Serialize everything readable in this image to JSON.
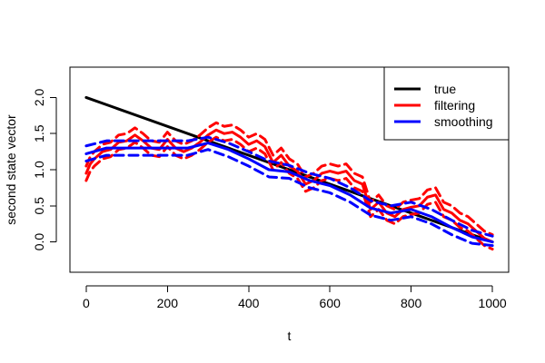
{
  "chart_data": {
    "type": "line",
    "title": "",
    "xlabel": "t",
    "ylabel": "second state vector",
    "xlim": [
      -40,
      1040
    ],
    "ylim": [
      -0.42,
      2.42
    ],
    "xticks": [
      0,
      200,
      400,
      600,
      800,
      1000
    ],
    "yticks": [
      0.0,
      0.5,
      1.0,
      1.5,
      2.0
    ],
    "xtick_labels": [
      "0",
      "200",
      "400",
      "600",
      "800",
      "1000"
    ],
    "ytick_labels": [
      "0.0",
      "0.5",
      "1.0",
      "1.5",
      "2.0"
    ],
    "grid": false,
    "legend": {
      "position": "top-right",
      "entries": [
        {
          "label": "true",
          "color": "#000000"
        },
        {
          "label": "filtering",
          "color": "#ff0000"
        },
        {
          "label": "smoothing",
          "color": "#0000ff"
        }
      ]
    },
    "series": [
      {
        "name": "true",
        "color": "#000000",
        "line": "solid",
        "x": [
          0,
          1000
        ],
        "values": [
          2.0,
          0.0
        ]
      },
      {
        "name": "filtering",
        "color": "#ff0000",
        "line": "solid",
        "x": [
          0,
          10,
          20,
          40,
          60,
          80,
          100,
          120,
          140,
          160,
          180,
          200,
          220,
          240,
          260,
          280,
          300,
          320,
          340,
          360,
          380,
          400,
          420,
          440,
          460,
          480,
          500,
          520,
          540,
          560,
          580,
          600,
          620,
          640,
          660,
          680,
          700,
          720,
          740,
          760,
          780,
          800,
          820,
          840,
          860,
          880,
          900,
          920,
          940,
          960,
          980,
          1000
        ],
        "values": [
          0.95,
          1.08,
          1.15,
          1.25,
          1.28,
          1.38,
          1.4,
          1.48,
          1.4,
          1.3,
          1.28,
          1.42,
          1.3,
          1.25,
          1.3,
          1.38,
          1.48,
          1.55,
          1.5,
          1.52,
          1.45,
          1.35,
          1.4,
          1.32,
          1.1,
          1.2,
          1.05,
          0.98,
          0.8,
          0.85,
          0.95,
          0.98,
          0.95,
          0.98,
          0.85,
          0.8,
          0.45,
          0.55,
          0.4,
          0.35,
          0.45,
          0.48,
          0.5,
          0.62,
          0.65,
          0.45,
          0.4,
          0.3,
          0.25,
          0.15,
          0.05,
          0.0
        ]
      },
      {
        "name": "filtering upper band",
        "color": "#ff0000",
        "line": "dashed",
        "x": [
          0,
          10,
          20,
          40,
          60,
          80,
          100,
          120,
          140,
          160,
          180,
          200,
          220,
          240,
          260,
          280,
          300,
          320,
          340,
          360,
          380,
          400,
          420,
          440,
          460,
          480,
          500,
          520,
          540,
          560,
          580,
          600,
          620,
          640,
          660,
          680,
          700,
          720,
          740,
          760,
          780,
          800,
          820,
          840,
          860,
          880,
          900,
          920,
          940,
          960,
          980,
          1000
        ],
        "values": [
          1.05,
          1.18,
          1.25,
          1.35,
          1.38,
          1.48,
          1.5,
          1.58,
          1.5,
          1.4,
          1.38,
          1.52,
          1.4,
          1.35,
          1.4,
          1.48,
          1.58,
          1.65,
          1.6,
          1.62,
          1.55,
          1.45,
          1.5,
          1.42,
          1.2,
          1.3,
          1.15,
          1.08,
          0.9,
          0.95,
          1.05,
          1.08,
          1.05,
          1.08,
          0.95,
          0.9,
          0.55,
          0.65,
          0.5,
          0.45,
          0.55,
          0.58,
          0.6,
          0.72,
          0.75,
          0.55,
          0.5,
          0.4,
          0.35,
          0.25,
          0.15,
          0.1
        ]
      },
      {
        "name": "filtering lower band",
        "color": "#ff0000",
        "line": "dashed",
        "x": [
          0,
          10,
          20,
          40,
          60,
          80,
          100,
          120,
          140,
          160,
          180,
          200,
          220,
          240,
          260,
          280,
          300,
          320,
          340,
          360,
          380,
          400,
          420,
          440,
          460,
          480,
          500,
          520,
          540,
          560,
          580,
          600,
          620,
          640,
          660,
          680,
          700,
          720,
          740,
          760,
          780,
          800,
          820,
          840,
          860,
          880,
          900,
          920,
          940,
          960,
          980,
          1000
        ],
        "values": [
          0.85,
          0.98,
          1.05,
          1.15,
          1.18,
          1.28,
          1.3,
          1.38,
          1.3,
          1.2,
          1.18,
          1.32,
          1.2,
          1.15,
          1.2,
          1.28,
          1.38,
          1.45,
          1.4,
          1.42,
          1.35,
          1.25,
          1.3,
          1.22,
          1.0,
          1.1,
          0.95,
          0.88,
          0.7,
          0.75,
          0.85,
          0.88,
          0.85,
          0.88,
          0.75,
          0.7,
          0.35,
          0.45,
          0.3,
          0.25,
          0.35,
          0.38,
          0.4,
          0.52,
          0.55,
          0.35,
          0.3,
          0.2,
          0.15,
          0.05,
          -0.05,
          -0.1
        ]
      },
      {
        "name": "smoothing",
        "color": "#0000ff",
        "line": "solid",
        "x": [
          0,
          50,
          100,
          150,
          200,
          250,
          300,
          350,
          400,
          450,
          500,
          550,
          600,
          650,
          700,
          750,
          800,
          850,
          900,
          950,
          1000
        ],
        "values": [
          1.22,
          1.3,
          1.3,
          1.3,
          1.3,
          1.3,
          1.37,
          1.28,
          1.15,
          1.0,
          0.97,
          0.85,
          0.78,
          0.65,
          0.47,
          0.4,
          0.45,
          0.35,
          0.2,
          0.07,
          0.0
        ]
      },
      {
        "name": "smoothing upper band",
        "color": "#0000ff",
        "line": "dashed",
        "x": [
          0,
          50,
          100,
          150,
          200,
          250,
          300,
          350,
          400,
          450,
          500,
          550,
          600,
          650,
          700,
          750,
          800,
          850,
          900,
          950,
          1000
        ],
        "values": [
          1.33,
          1.4,
          1.4,
          1.4,
          1.4,
          1.4,
          1.45,
          1.37,
          1.25,
          1.12,
          1.06,
          0.95,
          0.88,
          0.75,
          0.57,
          0.5,
          0.55,
          0.45,
          0.3,
          0.16,
          0.08
        ]
      },
      {
        "name": "smoothing lower band",
        "color": "#0000ff",
        "line": "dashed",
        "x": [
          0,
          50,
          100,
          150,
          200,
          250,
          300,
          350,
          400,
          450,
          500,
          550,
          600,
          650,
          700,
          750,
          800,
          850,
          900,
          950,
          1000
        ],
        "values": [
          1.12,
          1.2,
          1.2,
          1.2,
          1.2,
          1.2,
          1.28,
          1.18,
          1.05,
          0.9,
          0.88,
          0.75,
          0.68,
          0.55,
          0.37,
          0.3,
          0.35,
          0.25,
          0.1,
          -0.02,
          -0.05
        ]
      }
    ]
  }
}
